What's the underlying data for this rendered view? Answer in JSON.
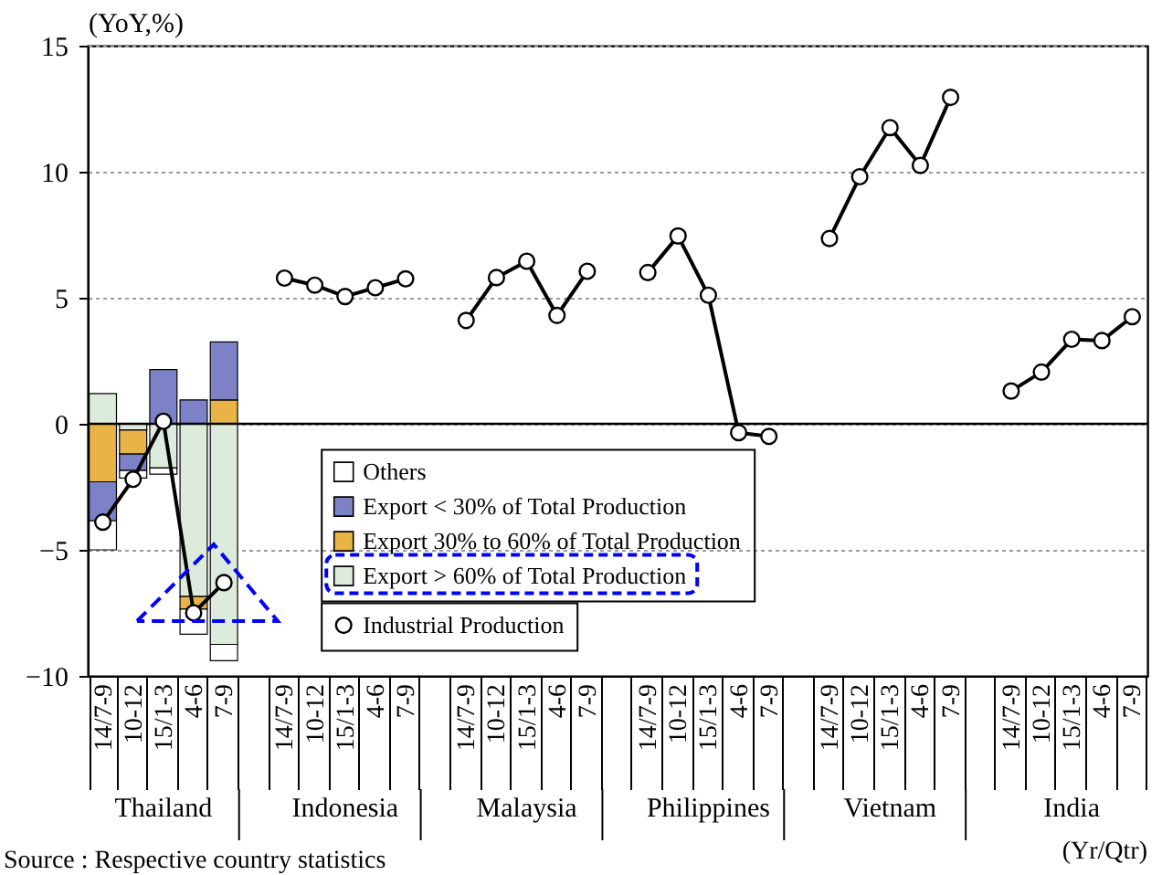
{
  "chart_data": {
    "type": "bar",
    "stacked": true,
    "categories": [
      "14/7-9",
      "10-12",
      "15/1-3",
      "4-6",
      "7-9",
      null,
      "14/7-9",
      "10-12",
      "15/1-3",
      "4-6",
      "7-9",
      null,
      "14/7-9",
      "10-12",
      "15/1-3",
      "4-6",
      "7-9",
      null,
      "14/7-9",
      "10-12",
      "15/1-3",
      "4-6",
      "7-9",
      null,
      "14/7-9",
      "10-12",
      "15/1-3",
      "4-6",
      "7-9",
      null,
      "14/7-9",
      "10-12",
      "15/1-3",
      "4-6",
      "7-9"
    ],
    "series": [
      {
        "name": "Export > 60% of Total Production",
        "type": "bar",
        "color": "#dcebdc",
        "values": [
          1.2,
          -0.25,
          -1.75,
          -6.85,
          -8.75,
          null,
          null,
          null,
          null,
          null,
          null,
          null,
          null,
          null,
          null,
          null,
          null,
          null,
          null,
          null,
          null,
          null,
          null,
          null,
          null,
          null,
          null,
          null,
          null,
          null,
          null,
          null,
          null,
          null,
          null
        ]
      },
      {
        "name": "Export 30% to 60% of Total Production",
        "type": "bar",
        "color": "#e8b448",
        "values": [
          -2.3,
          -0.95,
          null,
          -0.5,
          0.95,
          null,
          null,
          null,
          null,
          null,
          null,
          null,
          null,
          null,
          null,
          null,
          null,
          null,
          null,
          null,
          null,
          null,
          null,
          null,
          null,
          null,
          null,
          null,
          null,
          null,
          null,
          null,
          null,
          null,
          null
        ]
      },
      {
        "name": "Export < 30% of Total Production",
        "type": "bar",
        "color": "#7d82c8",
        "values": [
          -1.55,
          -0.65,
          2.15,
          0.95,
          2.3,
          null,
          null,
          null,
          null,
          null,
          null,
          null,
          null,
          null,
          null,
          null,
          null,
          null,
          null,
          null,
          null,
          null,
          null,
          null,
          null,
          null,
          null,
          null,
          null,
          null,
          null,
          null,
          null,
          null,
          null
        ]
      },
      {
        "name": "Others",
        "type": "bar",
        "color": "#ffffff",
        "values": [
          -1.15,
          -0.3,
          -0.25,
          -1.0,
          -0.65,
          null,
          null,
          null,
          null,
          null,
          null,
          null,
          null,
          null,
          null,
          null,
          null,
          null,
          null,
          null,
          null,
          null,
          null,
          null,
          null,
          null,
          null,
          null,
          null,
          null,
          null,
          null,
          null,
          null,
          null
        ]
      },
      {
        "name": "Industrial Production",
        "type": "line",
        "color": "#000000",
        "values": [
          -3.9,
          -2.2,
          0.1,
          -7.5,
          -6.3,
          null,
          5.78,
          5.5,
          5.05,
          5.4,
          5.75,
          null,
          4.1,
          5.8,
          6.45,
          4.3,
          6.05,
          null,
          6.0,
          7.45,
          5.1,
          -0.35,
          -0.5,
          null,
          7.35,
          9.8,
          11.75,
          10.25,
          12.95,
          null,
          1.3,
          2.05,
          3.35,
          3.3,
          4.25
        ]
      }
    ],
    "ylabel": "(YoY,%)",
    "xlabel": "(Yr/Qtr)",
    "ylim": [
      -10,
      15
    ],
    "yticks": [
      -10,
      -5,
      0,
      5,
      10,
      15
    ],
    "grid": "y",
    "legend": "bottom",
    "marker": "circle",
    "line_style": "solid",
    "ref_lines": [
      {
        "axis": "y",
        "value": 0
      }
    ],
    "annotations": [
      "Thailand",
      "Indonesia",
      "Malaysia",
      "Philippines",
      "Vietnam",
      "India",
      "Source : Respective country statistics"
    ]
  }
}
